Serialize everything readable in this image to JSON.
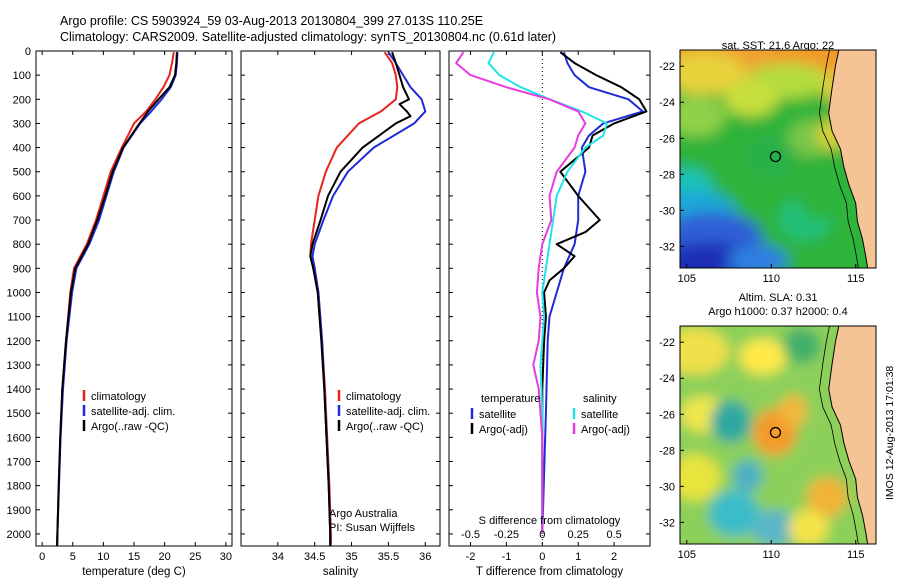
{
  "header": {
    "line1": "Argo profile: CS 5903924_59 03-Aug-2013 20130804_399 27.013S 110.25E",
    "line2": "Climatology: CARS2009. Satellite-adjusted climatology: synTS_20130804.nc (0.61d later)"
  },
  "colors": {
    "climatology": "#e8231e",
    "satellite": "#1f2bd6",
    "argo": "#000000",
    "salinity_satellite": "#22e3e8",
    "salinity_argo": "#e63ce0",
    "land": "#f5c494"
  },
  "chart_data": [
    {
      "type": "line",
      "id": "temperature",
      "xlabel": "temperature (deg C)",
      "ylabel": "",
      "xlim": [
        -1,
        31
      ],
      "ylim": [
        2050,
        0
      ],
      "xticks": [
        0,
        5,
        10,
        15,
        20,
        25,
        30
      ],
      "yticks": [
        0,
        100,
        200,
        300,
        400,
        500,
        600,
        700,
        800,
        900,
        1000,
        1100,
        1200,
        1300,
        1400,
        1500,
        1600,
        1700,
        1800,
        1900,
        2000
      ],
      "legend": [
        "climatology",
        "satellite-adj. clim.",
        "Argo(..raw -QC)"
      ],
      "series": [
        {
          "name": "climatology",
          "color": "climatology",
          "depth": [
            5,
            50,
            100,
            150,
            200,
            250,
            300,
            400,
            500,
            600,
            700,
            800,
            900,
            1000,
            1200,
            1400,
            1600,
            1800,
            2000,
            2050
          ],
          "values": [
            21.5,
            21.2,
            20.8,
            19.8,
            18.5,
            17.0,
            15.0,
            13.0,
            11.2,
            10.0,
            8.8,
            7.3,
            5.2,
            4.6,
            3.9,
            3.3,
            3.0,
            2.7,
            2.5,
            2.45
          ]
        },
        {
          "name": "satellite-adj. clim.",
          "color": "satellite",
          "depth": [
            5,
            50,
            100,
            150,
            200,
            250,
            300,
            400,
            500,
            600,
            700,
            800,
            900,
            1000,
            1200,
            1400,
            1600,
            1800,
            2000,
            2050
          ],
          "values": [
            22.1,
            22.0,
            21.8,
            21.0,
            19.5,
            17.8,
            16.0,
            13.3,
            11.7,
            10.5,
            9.3,
            7.7,
            5.6,
            4.9,
            4.0,
            3.4,
            3.0,
            2.75,
            2.5,
            2.45
          ]
        },
        {
          "name": "Argo(..raw -QC)",
          "color": "argo",
          "depth": [
            5,
            50,
            100,
            150,
            200,
            250,
            300,
            400,
            500,
            600,
            700,
            800,
            900,
            1000,
            1200,
            1400,
            1600,
            1800,
            2000,
            2050
          ],
          "values": [
            22.0,
            21.9,
            21.7,
            20.8,
            19.0,
            17.3,
            15.9,
            13.2,
            11.5,
            10.3,
            9.0,
            7.5,
            5.4,
            4.7,
            3.9,
            3.3,
            2.95,
            2.7,
            2.5,
            2.45
          ]
        }
      ]
    },
    {
      "type": "line",
      "id": "salinity",
      "xlabel": "salinity",
      "xlim": [
        33.5,
        36.2
      ],
      "ylim": [
        2050,
        0
      ],
      "xticks": [
        34,
        34.5,
        35,
        35.5,
        36
      ],
      "legend": [
        "climatology",
        "satellite-adj. clim.",
        "Argo(..raw -QC)"
      ],
      "note1": "Argo Australia",
      "note2": "PI: Susan Wijffels",
      "series": [
        {
          "name": "climatology",
          "color": "climatology",
          "depth": [
            5,
            50,
            100,
            150,
            200,
            250,
            300,
            400,
            500,
            600,
            700,
            800,
            850,
            900,
            1000,
            1200,
            1400,
            1600,
            1800,
            2000,
            2050
          ],
          "values": [
            35.45,
            35.55,
            35.6,
            35.62,
            35.6,
            35.4,
            35.1,
            34.8,
            34.65,
            34.55,
            34.5,
            34.45,
            34.44,
            34.5,
            34.55,
            34.6,
            34.64,
            34.67,
            34.7,
            34.72,
            34.72
          ]
        },
        {
          "name": "satellite-adj. clim.",
          "color": "satellite",
          "depth": [
            5,
            50,
            100,
            150,
            200,
            250,
            300,
            400,
            500,
            600,
            700,
            800,
            850,
            900,
            1000,
            1200,
            1400,
            1600,
            1800,
            2000,
            2050
          ],
          "values": [
            35.5,
            35.6,
            35.7,
            35.8,
            35.95,
            36.0,
            35.85,
            35.3,
            34.95,
            34.75,
            34.62,
            34.5,
            34.47,
            34.5,
            34.55,
            34.6,
            34.63,
            34.66,
            34.69,
            34.71,
            34.71
          ]
        },
        {
          "name": "Argo(..raw -QC)",
          "color": "argo",
          "depth": [
            5,
            50,
            100,
            150,
            200,
            220,
            250,
            270,
            300,
            400,
            500,
            600,
            700,
            800,
            850,
            900,
            1000,
            1200,
            1400,
            1600,
            1800,
            2000,
            2050
          ],
          "values": [
            35.55,
            35.6,
            35.65,
            35.7,
            35.78,
            35.65,
            35.75,
            35.8,
            35.6,
            35.15,
            34.85,
            34.68,
            34.58,
            34.47,
            34.44,
            34.48,
            34.54,
            34.59,
            34.63,
            34.66,
            34.69,
            34.71,
            34.71
          ]
        }
      ]
    },
    {
      "type": "line",
      "id": "difference",
      "xlabel": "T difference from climatology",
      "xlabel_top": "S difference from climatology",
      "xlim": [
        -2.6,
        3.0
      ],
      "ylim": [
        2050,
        0
      ],
      "xticks": [
        -2,
        -1,
        0,
        1,
        2
      ],
      "xticks_top": [
        -0.5,
        -0.25,
        0,
        0.25,
        0.5
      ],
      "legend_titles": [
        "temperature",
        "salinity"
      ],
      "legend": [
        "satellite",
        "Argo(-adj)",
        "satellite",
        "Argo(-adj)"
      ],
      "series": [
        {
          "name": "satellite",
          "group": "temperature",
          "color": "satellite",
          "depth": [
            5,
            50,
            100,
            150,
            200,
            250,
            300,
            350,
            400,
            500,
            600,
            700,
            800,
            900,
            1000,
            1100,
            1200,
            1500,
            2000
          ],
          "values": [
            0.6,
            0.7,
            0.9,
            1.3,
            2.4,
            2.8,
            1.7,
            1.3,
            1.1,
            1.2,
            1.0,
            1.0,
            0.9,
            0.6,
            0.4,
            0.2,
            0.15,
            0.1,
            0.0
          ]
        },
        {
          "name": "Argo(-adj)",
          "group": "temperature",
          "color": "argo",
          "depth": [
            5,
            50,
            100,
            150,
            200,
            250,
            300,
            350,
            400,
            500,
            600,
            700,
            750,
            800,
            850,
            900,
            950,
            1000,
            1100,
            1200,
            1400,
            1600,
            2000
          ],
          "values": [
            0.5,
            0.9,
            1.5,
            2.2,
            2.7,
            2.9,
            2.0,
            1.4,
            1.3,
            0.5,
            1.0,
            1.6,
            1.2,
            0.4,
            0.9,
            0.6,
            0.2,
            0.05,
            0.1,
            0.05,
            0.0,
            0.0,
            0.0
          ]
        },
        {
          "name": "satellite",
          "group": "salinity",
          "color": "salinity_satellite",
          "depth": [
            5,
            50,
            100,
            150,
            200,
            250,
            300,
            350,
            400,
            500,
            600,
            700,
            800,
            900,
            1000,
            1100,
            1200,
            1300,
            1500,
            2000
          ],
          "values": [
            -1.35,
            -1.5,
            -1.2,
            -0.6,
            0.2,
            1.1,
            1.8,
            1.7,
            1.2,
            0.7,
            0.4,
            0.3,
            0.2,
            0.1,
            0.0,
            0.05,
            0.0,
            -0.05,
            0.0,
            0.0
          ]
        },
        {
          "name": "Argo(-adj)",
          "group": "salinity",
          "color": "salinity_argo",
          "depth": [
            5,
            50,
            100,
            150,
            200,
            250,
            300,
            350,
            400,
            500,
            600,
            700,
            800,
            900,
            1000,
            1100,
            1200,
            1300,
            1400,
            1600,
            2000
          ],
          "values": [
            -2.2,
            -2.4,
            -2.0,
            -1.0,
            0.2,
            1.0,
            1.2,
            1.0,
            0.9,
            0.4,
            0.2,
            0.25,
            0.0,
            -0.1,
            -0.15,
            -0.05,
            -0.1,
            -0.25,
            -0.1,
            0.0,
            0.0
          ]
        }
      ]
    },
    {
      "type": "heatmap",
      "id": "sst_map",
      "title": "sat. SST: 21.6 Argo: 22",
      "xlim": [
        104.6,
        116.2
      ],
      "ylim": [
        -33.2,
        -21.1
      ],
      "xticks": [
        105,
        110,
        115
      ],
      "yticks": [
        -22,
        -24,
        -26,
        -28,
        -30,
        -32
      ],
      "profile_location": [
        110.25,
        -27.013
      ]
    },
    {
      "type": "heatmap",
      "id": "sla_map",
      "title_line1": "Altim. SLA: 0.31",
      "title_line2": "Argo h1000: 0.37 h2000: 0.4",
      "xlim": [
        104.6,
        116.2
      ],
      "ylim": [
        -33.2,
        -21.1
      ],
      "xticks": [
        105,
        110,
        115
      ],
      "yticks": [
        -22,
        -24,
        -26,
        -28,
        -30,
        -32
      ],
      "profile_location": [
        110.25,
        -27.013
      ]
    }
  ],
  "stamp": "IMOS 12-Aug-2013 17:01:38"
}
